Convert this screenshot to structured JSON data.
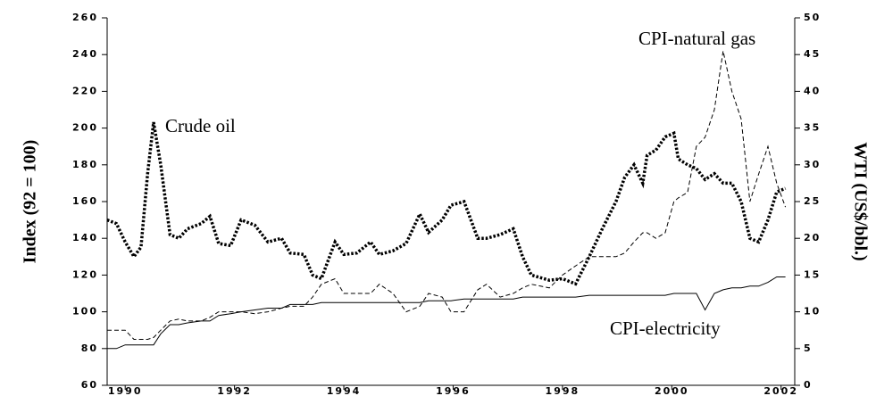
{
  "chart_data": {
    "type": "line",
    "ylabel": "Index (92 = 100)",
    "y2label": "WTI (US$/bbl.)",
    "xlim": [
      1989.67,
      2002.25
    ],
    "xticks": [
      1990,
      1992,
      1994,
      1996,
      1998,
      2000,
      2002
    ],
    "ylim": [
      60,
      260
    ],
    "yticks": [
      60,
      80,
      100,
      120,
      140,
      160,
      180,
      200,
      220,
      240,
      260
    ],
    "y2lim": [
      0,
      50
    ],
    "y2ticks": [
      0,
      5,
      10,
      15,
      20,
      25,
      30,
      35,
      40,
      45,
      50
    ],
    "x": [
      1989.67,
      1989.84,
      1990.0,
      1990.16,
      1990.29,
      1990.41,
      1990.52,
      1990.65,
      1990.82,
      1990.98,
      1991.14,
      1991.39,
      1991.55,
      1991.71,
      1991.93,
      1992.12,
      1992.37,
      1992.61,
      1992.86,
      1993.02,
      1993.27,
      1993.43,
      1993.59,
      1993.84,
      1994.0,
      1994.24,
      1994.49,
      1994.65,
      1994.9,
      1995.14,
      1995.39,
      1995.55,
      1995.8,
      1995.96,
      1996.2,
      1996.45,
      1996.61,
      1996.86,
      1997.1,
      1997.27,
      1997.43,
      1997.76,
      1998.0,
      1998.24,
      1998.49,
      1998.73,
      1998.98,
      1999.14,
      1999.31,
      1999.47,
      1999.55,
      1999.71,
      1999.88,
      2000.04,
      2000.12,
      2000.29,
      2000.45,
      2000.61,
      2000.78,
      2000.94,
      2001.1,
      2001.27,
      2001.43,
      2001.59,
      2001.76,
      2001.92,
      2002.08
    ],
    "series": [
      {
        "name": "Crude oil",
        "color": "#000000",
        "linestyle": "dotted",
        "axis": "y2",
        "values": [
          22.5,
          22,
          19.5,
          17.5,
          18.8,
          28.8,
          35.8,
          30,
          20.5,
          20,
          21.3,
          22,
          23,
          19.3,
          19,
          22.5,
          21.8,
          19.5,
          20,
          18,
          17.8,
          15,
          14.5,
          19.5,
          17.8,
          18,
          19.5,
          17.8,
          18.3,
          19.3,
          23.3,
          20.8,
          22.5,
          24.5,
          25,
          20,
          20,
          20.5,
          21.3,
          17.5,
          15,
          14.3,
          14.5,
          13.8,
          17.5,
          21.3,
          25,
          28.3,
          30,
          27.5,
          31.3,
          32,
          33.8,
          34.3,
          30.8,
          30,
          29.5,
          28,
          28.8,
          27.5,
          27.5,
          25,
          20,
          19.5,
          22.5,
          26.3,
          26.8
        ]
      },
      {
        "name": "CPI-natural gas",
        "color": "#000000",
        "linestyle": "dashed",
        "values": [
          90,
          90,
          90,
          85,
          85,
          85,
          86,
          90,
          95,
          96,
          95,
          95,
          97,
          100,
          100,
          100,
          99,
          100,
          102,
          103,
          103,
          108,
          115,
          118,
          110,
          110,
          110,
          115,
          110,
          100,
          103,
          110,
          108,
          100,
          100,
          112,
          115,
          108,
          110,
          113,
          115,
          113,
          120,
          125,
          130,
          130,
          130,
          132,
          138,
          143,
          143,
          140,
          143,
          160,
          162,
          165,
          190,
          195,
          210,
          242,
          220,
          205,
          160,
          175,
          190,
          170,
          157
        ]
      },
      {
        "name": "CPI-electricity",
        "color": "#000000",
        "linestyle": "solid",
        "values": [
          80,
          80,
          82,
          82,
          82,
          82,
          82,
          88,
          93,
          93,
          94,
          95,
          95,
          98,
          99,
          100,
          101,
          102,
          102,
          104,
          104,
          104,
          105,
          105,
          105,
          105,
          105,
          105,
          105,
          105,
          105,
          106,
          106,
          106,
          107,
          107,
          107,
          107,
          107,
          108,
          108,
          108,
          108,
          108,
          109,
          109,
          109,
          109,
          109,
          109,
          109,
          109,
          109,
          110,
          110,
          110,
          110,
          101,
          110,
          112,
          113,
          113,
          114,
          114,
          116,
          119,
          119
        ]
      }
    ]
  }
}
